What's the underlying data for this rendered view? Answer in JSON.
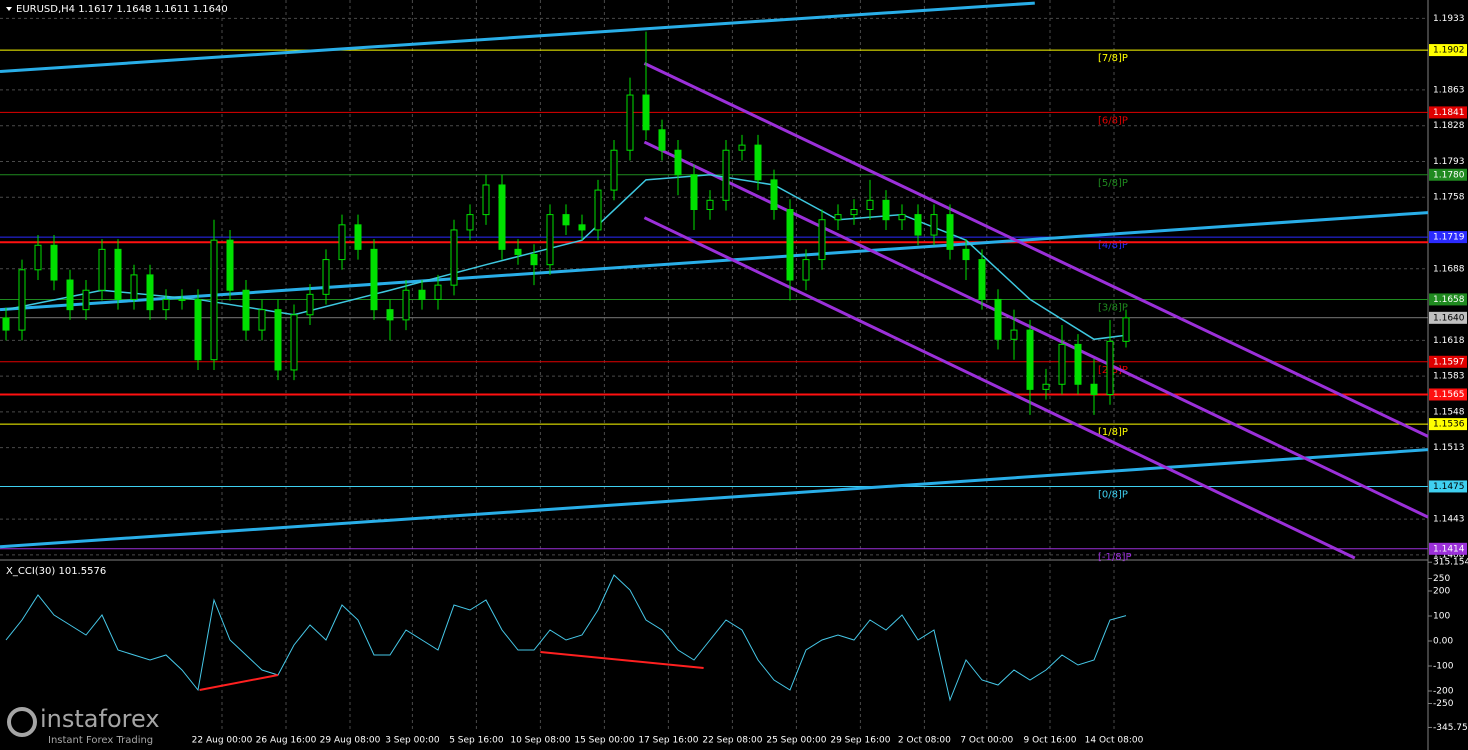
{
  "chart_data": [
    {
      "type": "candlestick",
      "title": "EURUSD,H4  1.1617 1.1648 1.1611 1.1640",
      "color": "#00e000",
      "open": [
        1.164,
        1.1628,
        1.1687,
        1.1711,
        1.1677,
        1.1648,
        1.1667,
        1.1707,
        1.1658,
        1.1682,
        1.1648,
        1.1658,
        1.1658,
        1.1599,
        1.1716,
        1.1667,
        1.1628,
        1.1648,
        1.1589,
        1.1643,
        1.1663,
        1.1697,
        1.1731,
        1.1707,
        1.1648,
        1.1638,
        1.1667,
        1.1658,
        1.1672,
        1.1726,
        1.1741,
        1.177,
        1.1707,
        1.1702,
        1.1692,
        1.1741,
        1.1731,
        1.1726,
        1.1765,
        1.1804,
        1.1858,
        1.1824,
        1.1804,
        1.178,
        1.1746,
        1.1755,
        1.1804,
        1.1809,
        1.1775,
        1.1746,
        1.1677,
        1.1697,
        1.1736,
        1.1741,
        1.1746,
        1.1755,
        1.1736,
        1.1741,
        1.1721,
        1.1741,
        1.1707,
        1.1697,
        1.1658,
        1.1619,
        1.1628,
        1.157,
        1.1575,
        1.1614,
        1.1575,
        1.1565,
        1.1617
      ],
      "high": [
        1.165,
        1.1697,
        1.1721,
        1.1721,
        1.1687,
        1.1677,
        1.1717,
        1.1717,
        1.1692,
        1.1692,
        1.1668,
        1.1668,
        1.1668,
        1.1736,
        1.1726,
        1.1677,
        1.1658,
        1.1658,
        1.1653,
        1.1673,
        1.1707,
        1.1741,
        1.1741,
        1.1717,
        1.1658,
        1.1677,
        1.1677,
        1.1682,
        1.1736,
        1.1751,
        1.178,
        1.178,
        1.1717,
        1.1712,
        1.1751,
        1.1751,
        1.1741,
        1.1775,
        1.1814,
        1.1875,
        1.192,
        1.1834,
        1.1814,
        1.179,
        1.1765,
        1.1814,
        1.1819,
        1.1819,
        1.1785,
        1.1756,
        1.1707,
        1.1746,
        1.1751,
        1.1756,
        1.1775,
        1.1765,
        1.1751,
        1.1751,
        1.1751,
        1.1751,
        1.1717,
        1.1707,
        1.1668,
        1.1648,
        1.1638,
        1.159,
        1.1633,
        1.1624,
        1.16,
        1.1638,
        1.1648
      ],
      "low": [
        1.1618,
        1.1618,
        1.1677,
        1.1667,
        1.1638,
        1.1638,
        1.1657,
        1.1648,
        1.1648,
        1.1638,
        1.1638,
        1.1648,
        1.1589,
        1.1589,
        1.1657,
        1.1618,
        1.1618,
        1.1579,
        1.1579,
        1.1633,
        1.1653,
        1.1687,
        1.1697,
        1.1638,
        1.1618,
        1.1628,
        1.1648,
        1.1648,
        1.1662,
        1.1716,
        1.1731,
        1.1697,
        1.1692,
        1.1672,
        1.1682,
        1.1721,
        1.1716,
        1.1716,
        1.1755,
        1.1794,
        1.1814,
        1.1794,
        1.176,
        1.1726,
        1.1736,
        1.1745,
        1.1794,
        1.1765,
        1.1736,
        1.1657,
        1.1667,
        1.1687,
        1.1726,
        1.1731,
        1.1736,
        1.1726,
        1.1726,
        1.1711,
        1.1711,
        1.1697,
        1.1677,
        1.1648,
        1.1609,
        1.1599,
        1.1545,
        1.156,
        1.1565,
        1.1565,
        1.1545,
        1.1555,
        1.1611
      ],
      "close": [
        1.1628,
        1.1687,
        1.1711,
        1.1677,
        1.1648,
        1.1667,
        1.1707,
        1.1658,
        1.1682,
        1.1648,
        1.1658,
        1.1658,
        1.1599,
        1.1716,
        1.1667,
        1.1628,
        1.1648,
        1.1589,
        1.1643,
        1.1663,
        1.1697,
        1.1731,
        1.1707,
        1.1648,
        1.1638,
        1.1667,
        1.1658,
        1.1672,
        1.1726,
        1.1741,
        1.177,
        1.1707,
        1.1702,
        1.1692,
        1.1741,
        1.1731,
        1.1726,
        1.1765,
        1.1804,
        1.1858,
        1.1824,
        1.1804,
        1.178,
        1.1746,
        1.1755,
        1.1804,
        1.1809,
        1.1775,
        1.1746,
        1.1677,
        1.1697,
        1.1736,
        1.1741,
        1.1746,
        1.1755,
        1.1736,
        1.1741,
        1.1721,
        1.1741,
        1.1707,
        1.1697,
        1.1658,
        1.1619,
        1.1628,
        1.157,
        1.1575,
        1.1614,
        1.1575,
        1.1565,
        1.1617,
        1.164
      ],
      "xlim": [
        -0.375,
        88.875
      ],
      "xticks": [
        {
          "value": 13.5,
          "label": "22 Aug 00:00"
        },
        {
          "value": 17.5,
          "label": "26 Aug 16:00"
        },
        {
          "value": 21.5,
          "label": "29 Aug 08:00"
        },
        {
          "value": 25.4,
          "label": "3 Sep 00:00"
        },
        {
          "value": 29.4,
          "label": "5 Sep 16:00"
        },
        {
          "value": 33.4,
          "label": "10 Sep 08:00"
        },
        {
          "value": 37.4,
          "label": "15 Sep 00:00"
        },
        {
          "value": 41.4,
          "label": "17 Sep 16:00"
        },
        {
          "value": 45.4,
          "label": "22 Sep 08:00"
        },
        {
          "value": 49.4,
          "label": "25 Sep 00:00"
        },
        {
          "value": 53.4,
          "label": "29 Sep 16:00"
        },
        {
          "value": 57.4,
          "label": "2 Oct 08:00"
        },
        {
          "value": 61.3,
          "label": "7 Oct 00:00"
        },
        {
          "value": 65.25,
          "label": "9 Oct 16:00"
        },
        {
          "value": 69.25,
          "label": "14 Oct 08:00"
        }
      ],
      "ylim": [
        1.1405,
        1.1951
      ],
      "yticks": [
        1.1933,
        1.1863,
        1.1828,
        1.1793,
        1.1758,
        1.1688,
        1.1618,
        1.1583,
        1.1548,
        1.1513,
        1.1443,
        1.1408
      ],
      "grid": true,
      "ma": {
        "color": "#3ec8e0",
        "x": [
          0,
          6,
          12,
          18,
          24,
          30,
          36,
          40,
          44,
          48,
          52,
          56,
          60,
          64,
          68,
          70
        ],
        "values": [
          1.1648,
          1.1667,
          1.1658,
          1.1643,
          1.1667,
          1.1692,
          1.1716,
          1.1775,
          1.178,
          1.177,
          1.1736,
          1.1741,
          1.1716,
          1.1658,
          1.1619,
          1.1623
        ]
      },
      "trendlines": [
        {
          "color": "#29aee8",
          "x": [
            -0.375,
            64.3
          ],
          "values": [
            1.1881,
            1.1948
          ]
        },
        {
          "color": "#29aee8",
          "x": [
            -0.375,
            88.875
          ],
          "values": [
            1.1648,
            1.1743
          ]
        },
        {
          "color": "#29aee8",
          "x": [
            -0.375,
            88.875
          ],
          "values": [
            1.1416,
            1.1511
          ]
        },
        {
          "color": "#9b30d9",
          "x": [
            39.9,
            88.875
          ],
          "values": [
            1.1889,
            1.1524
          ]
        },
        {
          "color": "#9b30d9",
          "x": [
            39.9,
            88.875
          ],
          "values": [
            1.1812,
            1.1445
          ]
        },
        {
          "color": "#9b30d9",
          "x": [
            39.9,
            84.3
          ],
          "values": [
            1.1738,
            1.1405
          ]
        }
      ],
      "levels": [
        {
          "value": 1.1902,
          "tag": "[7/8]P",
          "color": "#ffff00"
        },
        {
          "value": 1.1841,
          "tag": "[6/8]P",
          "color": "#e00000"
        },
        {
          "value": 1.178,
          "label": "1.1780",
          "tag": "[5/8]P",
          "color": "#1f8a1f"
        },
        {
          "value": 1.1719,
          "tag": "[4/8]P",
          "color": "#2b2bff"
        },
        {
          "value": 1.1658,
          "tag": "[3/8]P",
          "color": "#1f8a1f"
        },
        {
          "value": 1.1597,
          "tag": "[2/8]P",
          "color": "#e00000"
        },
        {
          "value": 1.1536,
          "tag": "[1/8]P",
          "color": "#ffff00"
        },
        {
          "value": 1.1475,
          "tag": "[0/8]P",
          "color": "#3fd0f0"
        },
        {
          "value": 1.1414,
          "tag": "[-1/8]P",
          "color": "#9b30d9"
        }
      ],
      "support": {
        "color": "#ff1010",
        "values": [
          1.1714,
          1.1565
        ],
        "labels": [
          null,
          "1.1565"
        ]
      },
      "current": {
        "value": 1.164,
        "label": "1.1640",
        "color": "#c0c0c0"
      }
    },
    {
      "type": "line",
      "title": "X_CCI(30) 101.5576",
      "color": "#46c8e8",
      "values": [
        4,
        84,
        184,
        104,
        64,
        24,
        104,
        -36,
        -56,
        -76,
        -56,
        -116,
        -196,
        164,
        4,
        -56,
        -116,
        -136,
        -16,
        64,
        4,
        144,
        84,
        -56,
        -56,
        44,
        4,
        -36,
        144,
        124,
        164,
        44,
        -36,
        -36,
        44,
        4,
        24,
        124,
        264,
        204,
        84,
        44,
        -36,
        -76,
        4,
        84,
        44,
        -76,
        -156,
        -196,
        -36,
        4,
        24,
        4,
        84,
        44,
        104,
        4,
        44,
        -236,
        -76,
        -156,
        -176,
        -116,
        -156,
        -116,
        -56,
        -96,
        -76,
        84,
        101.6
      ],
      "ylim": [
        -356,
        316
      ],
      "yticks": [
        315.1542,
        250,
        200,
        100,
        {
          "value": 0,
          "label": "0.00"
        },
        -100,
        -200,
        -250,
        -345.7536
      ],
      "divergences": [
        {
          "color": "#ff2020",
          "x": [
            12.1,
            17
          ],
          "values": [
            -196,
            -136
          ]
        },
        {
          "color": "#ff2020",
          "x": [
            33.4,
            43.6
          ],
          "values": [
            -44,
            -108
          ]
        }
      ]
    }
  ],
  "watermark": {
    "brand": "instaforex",
    "tagline": "Instant Forex Trading"
  }
}
